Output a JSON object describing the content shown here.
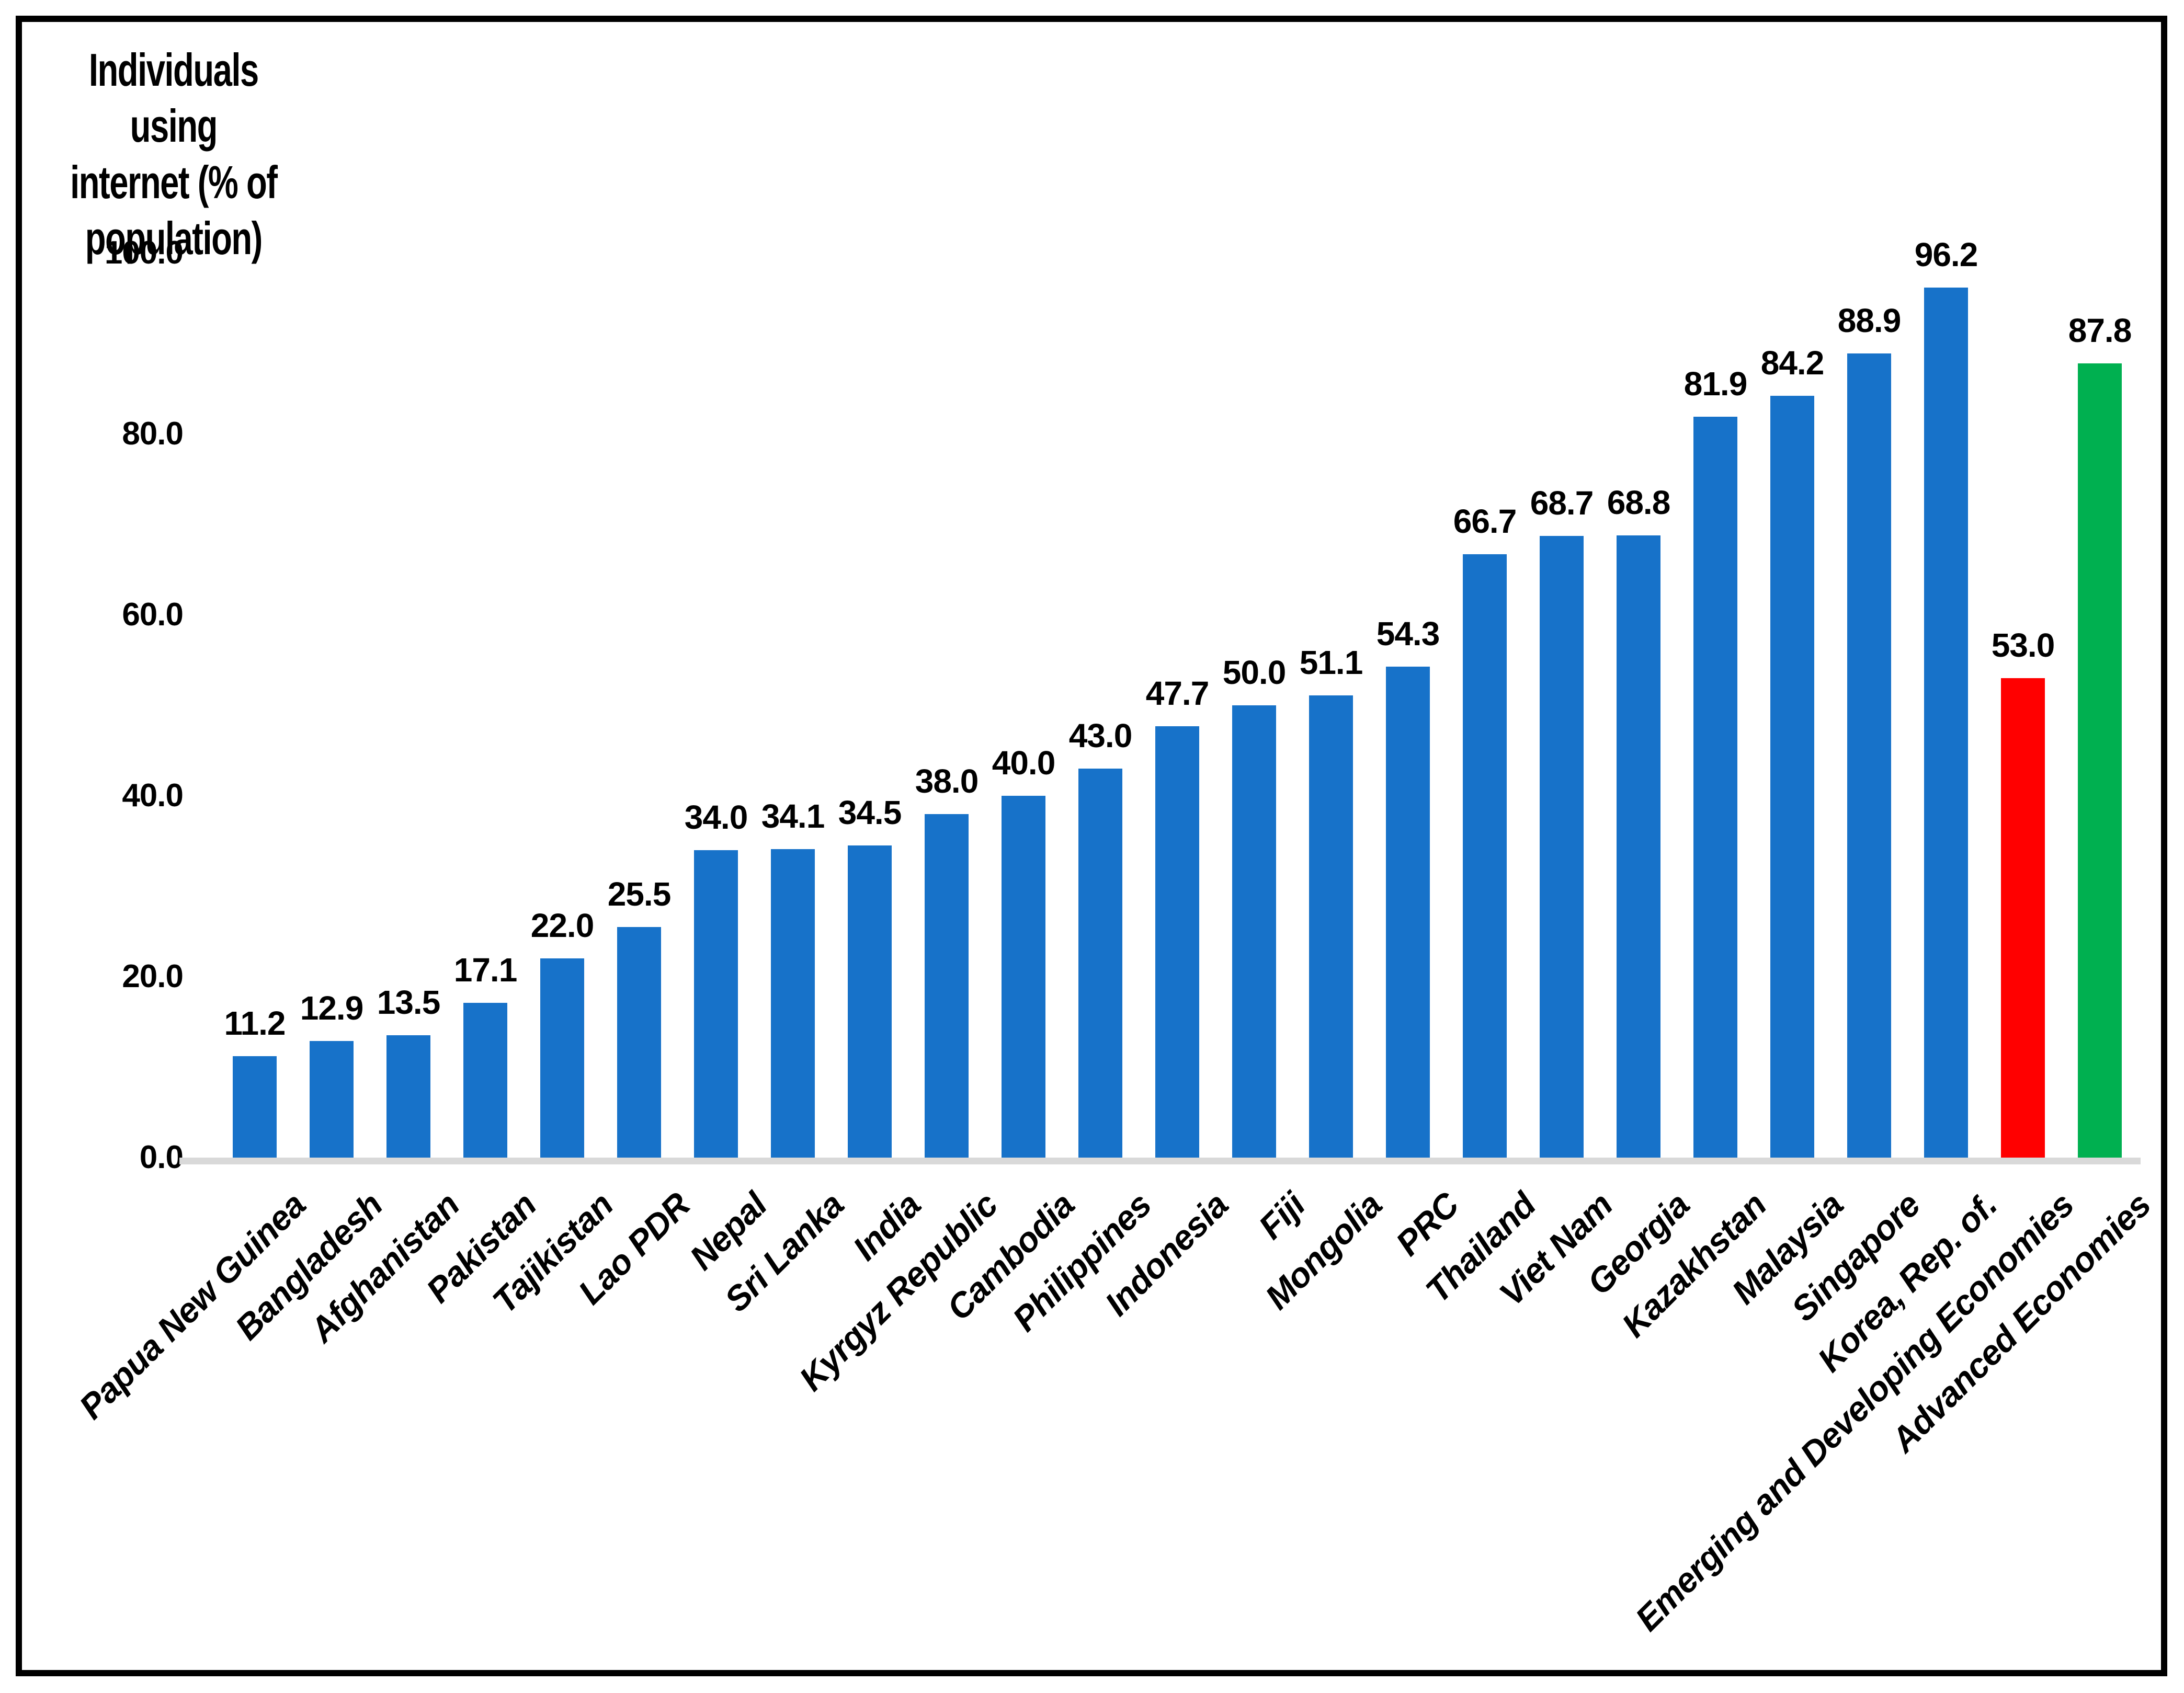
{
  "chart_data": {
    "type": "bar",
    "title": "Individuals using internet (% of population)",
    "title_lines": [
      "Individuals using",
      "internet (% of",
      "population)"
    ],
    "xlabel": "",
    "ylabel": "Individuals using internet (% of population)",
    "ylim": [
      0,
      100
    ],
    "grid": false,
    "legend_position": "none",
    "axis_line_color": "#d9d9d9",
    "colors": {
      "country_bar": "#1772c9",
      "emerging_bar": "#ff0000",
      "advanced_bar": "#00b050"
    },
    "yticks": [
      {
        "value": 0,
        "label": "0.0"
      },
      {
        "value": 20,
        "label": "20.0"
      },
      {
        "value": 40,
        "label": "40.0"
      },
      {
        "value": 60,
        "label": "60.0"
      },
      {
        "value": 80,
        "label": "80.0"
      },
      {
        "value": 100,
        "label": "100.0"
      }
    ],
    "bars": [
      {
        "label": "Papua New Guinea",
        "value": 11.2,
        "value_label": "11.2",
        "color": "#1772c9"
      },
      {
        "label": "Bangladesh",
        "value": 12.9,
        "value_label": "12.9",
        "color": "#1772c9"
      },
      {
        "label": "Afghanistan",
        "value": 13.5,
        "value_label": "13.5",
        "color": "#1772c9"
      },
      {
        "label": "Pakistan",
        "value": 17.1,
        "value_label": "17.1",
        "color": "#1772c9"
      },
      {
        "label": "Tajikistan",
        "value": 22.0,
        "value_label": "22.0",
        "color": "#1772c9"
      },
      {
        "label": "Lao PDR",
        "value": 25.5,
        "value_label": "25.5",
        "color": "#1772c9"
      },
      {
        "label": "Nepal",
        "value": 34.0,
        "value_label": "34.0",
        "color": "#1772c9"
      },
      {
        "label": "Sri Lanka",
        "value": 34.1,
        "value_label": "34.1",
        "color": "#1772c9"
      },
      {
        "label": "India",
        "value": 34.5,
        "value_label": "34.5",
        "color": "#1772c9"
      },
      {
        "label": "Kyrgyz Republic",
        "value": 38.0,
        "value_label": "38.0",
        "color": "#1772c9"
      },
      {
        "label": "Cambodia",
        "value": 40.0,
        "value_label": "40.0",
        "color": "#1772c9"
      },
      {
        "label": "Philippines",
        "value": 43.0,
        "value_label": "43.0",
        "color": "#1772c9"
      },
      {
        "label": "Indonesia",
        "value": 47.7,
        "value_label": "47.7",
        "color": "#1772c9"
      },
      {
        "label": "Fiji",
        "value": 50.0,
        "value_label": "50.0",
        "color": "#1772c9"
      },
      {
        "label": "Mongolia",
        "value": 51.1,
        "value_label": "51.1",
        "color": "#1772c9"
      },
      {
        "label": "PRC",
        "value": 54.3,
        "value_label": "54.3",
        "color": "#1772c9"
      },
      {
        "label": "Thailand",
        "value": 66.7,
        "value_label": "66.7",
        "color": "#1772c9"
      },
      {
        "label": "Viet Nam",
        "value": 68.7,
        "value_label": "68.7",
        "color": "#1772c9"
      },
      {
        "label": "Georgia",
        "value": 68.8,
        "value_label": "68.8",
        "color": "#1772c9"
      },
      {
        "label": "Kazakhstan",
        "value": 81.9,
        "value_label": "81.9",
        "color": "#1772c9"
      },
      {
        "label": "Malaysia",
        "value": 84.2,
        "value_label": "84.2",
        "color": "#1772c9"
      },
      {
        "label": "Singapore",
        "value": 88.9,
        "value_label": "88.9",
        "color": "#1772c9"
      },
      {
        "label": "Korea, Rep. of.",
        "value": 96.2,
        "value_label": "96.2",
        "color": "#1772c9"
      },
      {
        "label": "Emerging and Developing Economies",
        "value": 53.0,
        "value_label": "53.0",
        "color": "#ff0000"
      },
      {
        "label": "Advanced Economies",
        "value": 87.8,
        "value_label": "87.8",
        "color": "#00b050"
      }
    ]
  }
}
